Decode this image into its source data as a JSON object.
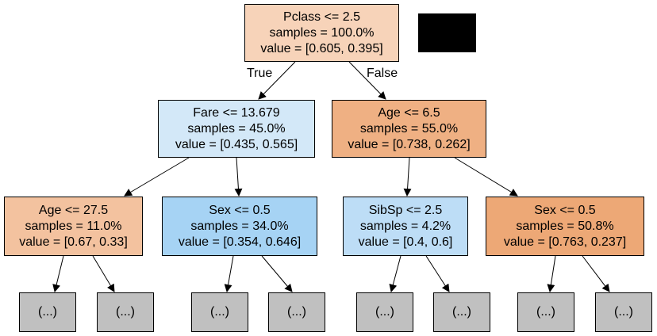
{
  "edge_labels": {
    "true_label": "True",
    "false_label": "False"
  },
  "nodes": {
    "root": {
      "lines": [
        "Pclass <= 2.5",
        "samples = 100.0%",
        "value = [0.605, 0.395]"
      ],
      "fill": "#f7d3b9"
    },
    "left": {
      "lines": [
        "Fare <= 13.679",
        "samples = 45.0%",
        "value = [0.435, 0.565]"
      ],
      "fill": "#d3e8f8"
    },
    "right": {
      "lines": [
        "Age <= 6.5",
        "samples = 55.0%",
        "value = [0.738, 0.262]"
      ],
      "fill": "#efb083"
    },
    "ll": {
      "lines": [
        "Age <= 27.5",
        "samples = 11.0%",
        "value = [0.67, 0.33]"
      ],
      "fill": "#f3c29f"
    },
    "lr": {
      "lines": [
        "Sex <= 0.5",
        "samples = 34.0%",
        "value = [0.354, 0.646]"
      ],
      "fill": "#a6d3f4"
    },
    "rl": {
      "lines": [
        "SibSp <= 2.5",
        "samples = 4.2%",
        "value = [0.4, 0.6]"
      ],
      "fill": "#bdddf6"
    },
    "rr": {
      "lines": [
        "Sex <= 0.5",
        "samples = 50.8%",
        "value = [0.763, 0.237]"
      ],
      "fill": "#eda876"
    }
  },
  "leaf_label": "(...)",
  "leaf_count": 8
}
